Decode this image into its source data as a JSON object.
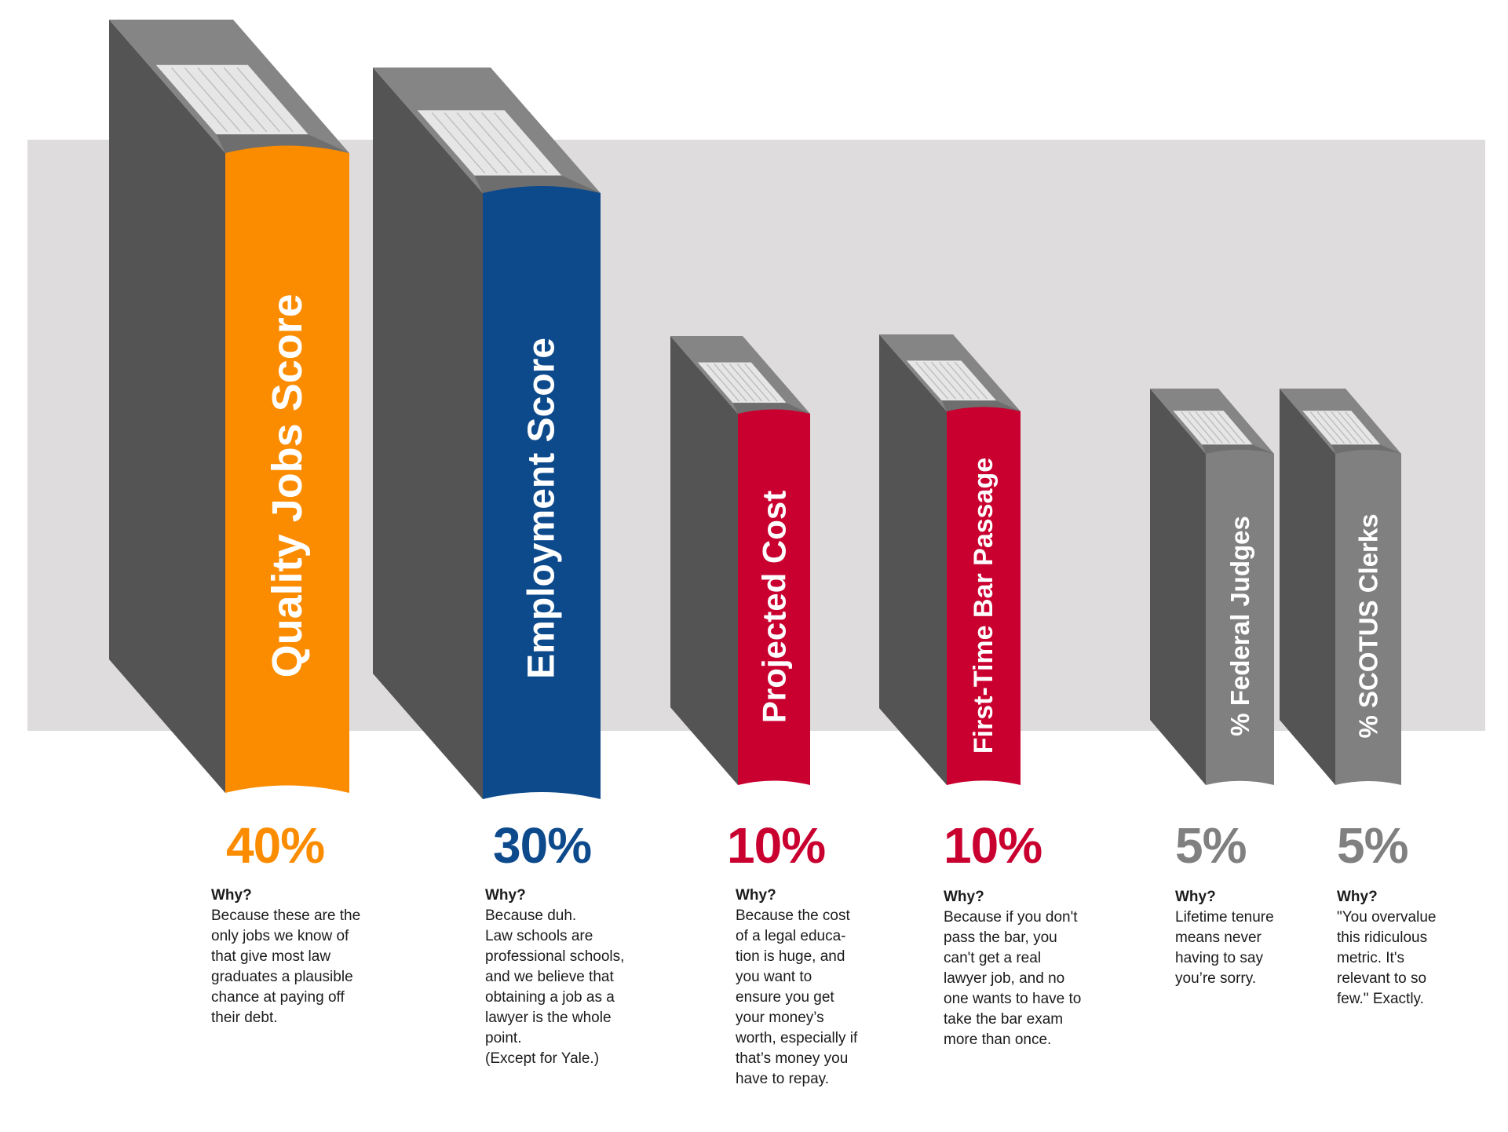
{
  "colors": {
    "band": "#dedcdd",
    "cover": "#545454",
    "top": "#858585",
    "pages": "#e6e6e6"
  },
  "items": [
    {
      "label": "Quality Jobs Score",
      "percent": "40%",
      "value": 40,
      "color": "#fb8c00",
      "why_label": "Why?",
      "why_lines": [
        "Because these are the",
        "only jobs we know of",
        "that give most law",
        "graduates a plausible",
        "chance at paying off",
        "their debt."
      ]
    },
    {
      "label": "Employment Score",
      "percent": "30%",
      "value": 30,
      "color": "#0d4a8c",
      "why_label": "Why?",
      "why_lines": [
        "Because duh.",
        "Law schools are",
        "professional schools,",
        "and we believe that",
        "obtaining a job as a",
        "lawyer is the whole",
        "point.",
        "(Except for Yale.)"
      ]
    },
    {
      "label": "Projected Cost",
      "percent": "10%",
      "value": 10,
      "color": "#c9002f",
      "why_label": "Why?",
      "why_lines": [
        "Because the cost",
        "of a legal educa-",
        "tion is huge, and",
        "you want to",
        "ensure you get",
        "your money’s",
        "worth, especially if",
        "that’s money you",
        "have to repay."
      ]
    },
    {
      "label": "First-Time Bar Passage",
      "percent": "10%",
      "value": 10,
      "color": "#c9002f",
      "why_label": "Why?",
      "why_lines": [
        "Because if you don't",
        "pass the bar, you",
        "can't get a real",
        "lawyer job, and no",
        "one wants to have to",
        "take the bar exam",
        "more than once."
      ]
    },
    {
      "label": "% Federal Judges",
      "percent": "5%",
      "value": 5,
      "color": "#808080",
      "why_label": "Why?",
      "why_lines": [
        "Lifetime tenure",
        "means never",
        "having to say",
        "you’re sorry."
      ]
    },
    {
      "label": "% SCOTUS Clerks",
      "percent": "5%",
      "value": 5,
      "color": "#808080",
      "why_label": "Why?",
      "why_lines": [
        "\"You overvalue",
        "this ridiculous",
        "metric. It's",
        "relevant to so",
        "few.\" Exactly."
      ]
    }
  ]
}
